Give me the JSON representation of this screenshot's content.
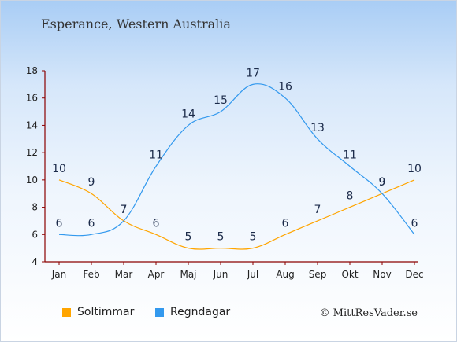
{
  "header": {
    "title": "Esperance, Western Australia"
  },
  "credit": "© MittResVader.se",
  "chart_data": {
    "type": "line",
    "categories": [
      "Jan",
      "Feb",
      "Mar",
      "Apr",
      "Maj",
      "Jun",
      "Jul",
      "Aug",
      "Sep",
      "Okt",
      "Nov",
      "Dec"
    ],
    "ylim": [
      4,
      18
    ],
    "yticks": [
      4,
      6,
      8,
      10,
      12,
      14,
      16,
      18
    ],
    "grid": false,
    "legend_position": "bottom-left",
    "series": [
      {
        "name": "Soltimmar",
        "color": "#ffa500",
        "values": [
          10,
          9,
          7,
          6,
          5,
          5,
          5,
          6,
          7,
          8,
          9,
          10
        ]
      },
      {
        "name": "Regndagar",
        "color": "#3399ee",
        "values": [
          6,
          6,
          7,
          11,
          14,
          15,
          17,
          16,
          13,
          11,
          9,
          6
        ]
      }
    ]
  }
}
